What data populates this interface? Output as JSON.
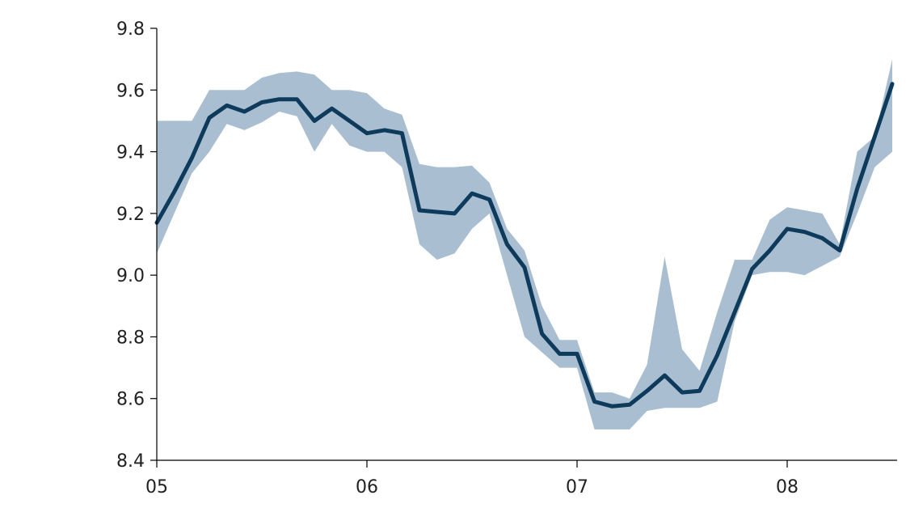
{
  "chart_data": {
    "type": "line",
    "title": "",
    "xlabel": "",
    "ylabel": "",
    "x_ticks": [
      "05",
      "06",
      "07",
      "08"
    ],
    "y_ticks": [
      "9.8",
      "9.6",
      "9.4",
      "9.2",
      "9.0",
      "8.8",
      "8.6",
      "8.4"
    ],
    "ylim": [
      8.4,
      9.8
    ],
    "xlim": [
      2005.0,
      2008.5
    ],
    "grid": false,
    "legend": "none",
    "colors": {
      "line": "#0e3a5c",
      "band": "#a9bfd1"
    },
    "series": [
      {
        "type": "line",
        "x": [
          2005.0,
          2005.083,
          2005.167,
          2005.25,
          2005.333,
          2005.417,
          2005.5,
          2005.583,
          2005.667,
          2005.75,
          2005.833,
          2005.917,
          2006.0,
          2006.083,
          2006.167,
          2006.25,
          2006.333,
          2006.417,
          2006.5,
          2006.583,
          2006.667,
          2006.75,
          2006.833,
          2006.917,
          2007.0,
          2007.083,
          2007.167,
          2007.25,
          2007.333,
          2007.417,
          2007.5,
          2007.583,
          2007.667,
          2007.75,
          2007.833,
          2007.917,
          2008.0,
          2008.083,
          2008.167,
          2008.25,
          2008.333,
          2008.417,
          2008.5
        ],
        "values": [
          9.17,
          9.27,
          9.38,
          9.51,
          9.55,
          9.53,
          9.56,
          9.57,
          9.57,
          9.5,
          9.54,
          9.5,
          9.46,
          9.47,
          9.46,
          9.21,
          9.205,
          9.2,
          9.265,
          9.245,
          9.1,
          9.025,
          8.81,
          8.745,
          8.745,
          8.59,
          8.575,
          8.58,
          8.625,
          8.675,
          8.62,
          8.625,
          8.74,
          8.88,
          9.02,
          9.08,
          9.15,
          9.14,
          9.12,
          9.08,
          9.28,
          9.45,
          9.62
        ]
      },
      {
        "type": "band",
        "x": [
          2005.0,
          2005.083,
          2005.167,
          2005.25,
          2005.333,
          2005.417,
          2005.5,
          2005.583,
          2005.667,
          2005.75,
          2005.833,
          2005.917,
          2006.0,
          2006.083,
          2006.167,
          2006.25,
          2006.333,
          2006.417,
          2006.5,
          2006.583,
          2006.667,
          2006.75,
          2006.833,
          2006.917,
          2007.0,
          2007.083,
          2007.167,
          2007.25,
          2007.333,
          2007.417,
          2007.5,
          2007.583,
          2007.667,
          2007.75,
          2007.833,
          2007.917,
          2008.0,
          2008.083,
          2008.167,
          2008.25,
          2008.333,
          2008.417,
          2008.5
        ],
        "upper": [
          9.5,
          9.5,
          9.5,
          9.6,
          9.6,
          9.6,
          9.64,
          9.655,
          9.66,
          9.65,
          9.6,
          9.6,
          9.59,
          9.54,
          9.52,
          9.36,
          9.35,
          9.35,
          9.355,
          9.3,
          9.15,
          9.08,
          8.9,
          8.79,
          8.79,
          8.62,
          8.62,
          8.6,
          8.71,
          9.06,
          8.76,
          8.69,
          8.88,
          9.05,
          9.05,
          9.18,
          9.22,
          9.21,
          9.2,
          9.1,
          9.4,
          9.45,
          9.7
        ],
        "lower": [
          9.07,
          9.2,
          9.33,
          9.4,
          9.49,
          9.47,
          9.495,
          9.53,
          9.515,
          9.4,
          9.49,
          9.42,
          9.4,
          9.4,
          9.35,
          9.1,
          9.05,
          9.07,
          9.15,
          9.2,
          9.0,
          8.8,
          8.75,
          8.7,
          8.7,
          8.5,
          8.5,
          8.5,
          8.56,
          8.57,
          8.57,
          8.57,
          8.59,
          8.85,
          9.0,
          9.01,
          9.01,
          9.0,
          9.03,
          9.06,
          9.2,
          9.35,
          9.4
        ]
      }
    ]
  }
}
